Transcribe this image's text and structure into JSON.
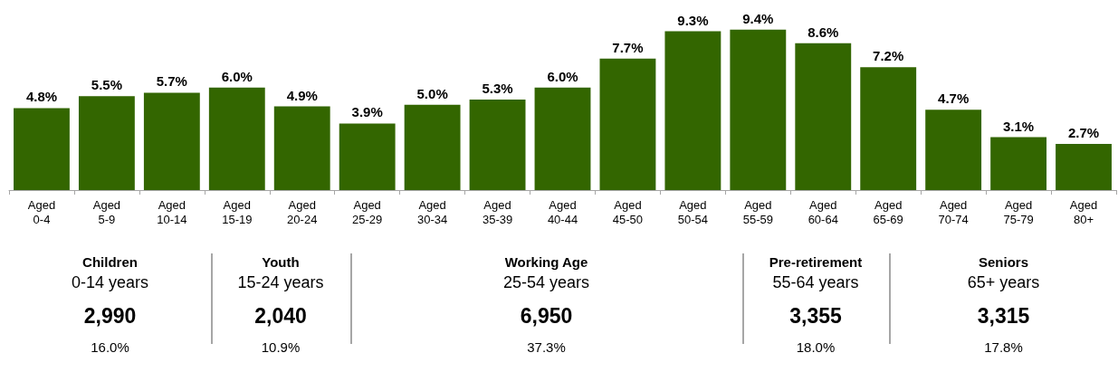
{
  "chart_data": {
    "type": "bar",
    "categories": [
      "Aged 0-4",
      "Aged 5-9",
      "Aged 10-14",
      "Aged 15-19",
      "Aged 20-24",
      "Aged 25-29",
      "Aged 30-34",
      "Aged 35-39",
      "Aged 40-44",
      "Aged 45-50",
      "Aged 50-54",
      "Aged 55-59",
      "Aged 60-64",
      "Aged 65-69",
      "Aged 70-74",
      "Aged 75-79",
      "Aged 80+"
    ],
    "values": [
      4.8,
      5.5,
      5.7,
      6.0,
      4.9,
      3.9,
      5.0,
      5.3,
      6.0,
      7.7,
      9.3,
      9.4,
      8.6,
      7.2,
      4.7,
      3.1,
      2.7
    ],
    "value_labels": [
      "4.8%",
      "5.5%",
      "5.7%",
      "6.0%",
      "4.9%",
      "3.9%",
      "5.0%",
      "5.3%",
      "6.0%",
      "7.7%",
      "9.3%",
      "9.4%",
      "8.6%",
      "7.2%",
      "4.7%",
      "3.1%",
      "2.7%"
    ],
    "color": "#336600",
    "annotations": [
      "Children",
      "0-14 years",
      "2,990",
      "16.0%",
      "Youth",
      "15-24 years",
      "2,040",
      "10.9%",
      "Working Age",
      "25-54 years",
      "6,950",
      "37.3%",
      "Pre-retirement",
      "55-64 years",
      "3,355",
      "18.0%",
      "Seniors",
      "65+ years",
      "3,315",
      "17.8%"
    ],
    "grid": false
  }
}
